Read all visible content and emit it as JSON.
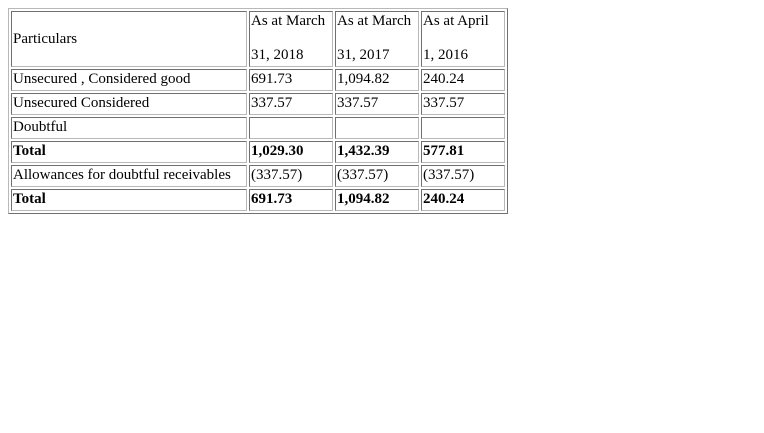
{
  "table": {
    "header": {
      "particulars": "Particulars",
      "columns": [
        {
          "line1": "As at March",
          "line2": "31, 2018"
        },
        {
          "line1": "As at March",
          "line2": "31, 2017"
        },
        {
          "line1": "As at April",
          "line2": "1, 2016"
        }
      ]
    },
    "rows": [
      {
        "label": "Unsecured , Considered good",
        "values": [
          "691.73",
          "1,094.82",
          "240.24"
        ],
        "bold": false
      },
      {
        "label": "Unsecured Considered",
        "values": [
          "337.57",
          "337.57",
          "337.57"
        ],
        "bold": false
      },
      {
        "label": "Doubtful",
        "values": [
          "",
          "",
          ""
        ],
        "bold": false
      },
      {
        "label": "Total",
        "values": [
          "1,029.30",
          "1,432.39",
          "577.81"
        ],
        "bold": true
      },
      {
        "label": "Allowances for doubtful receivables",
        "values": [
          "(337.57)",
          "(337.57)",
          "(337.57)"
        ],
        "bold": false
      },
      {
        "label": "Total",
        "values": [
          "691.73",
          "1,094.82",
          "240.24"
        ],
        "bold": true
      }
    ]
  }
}
